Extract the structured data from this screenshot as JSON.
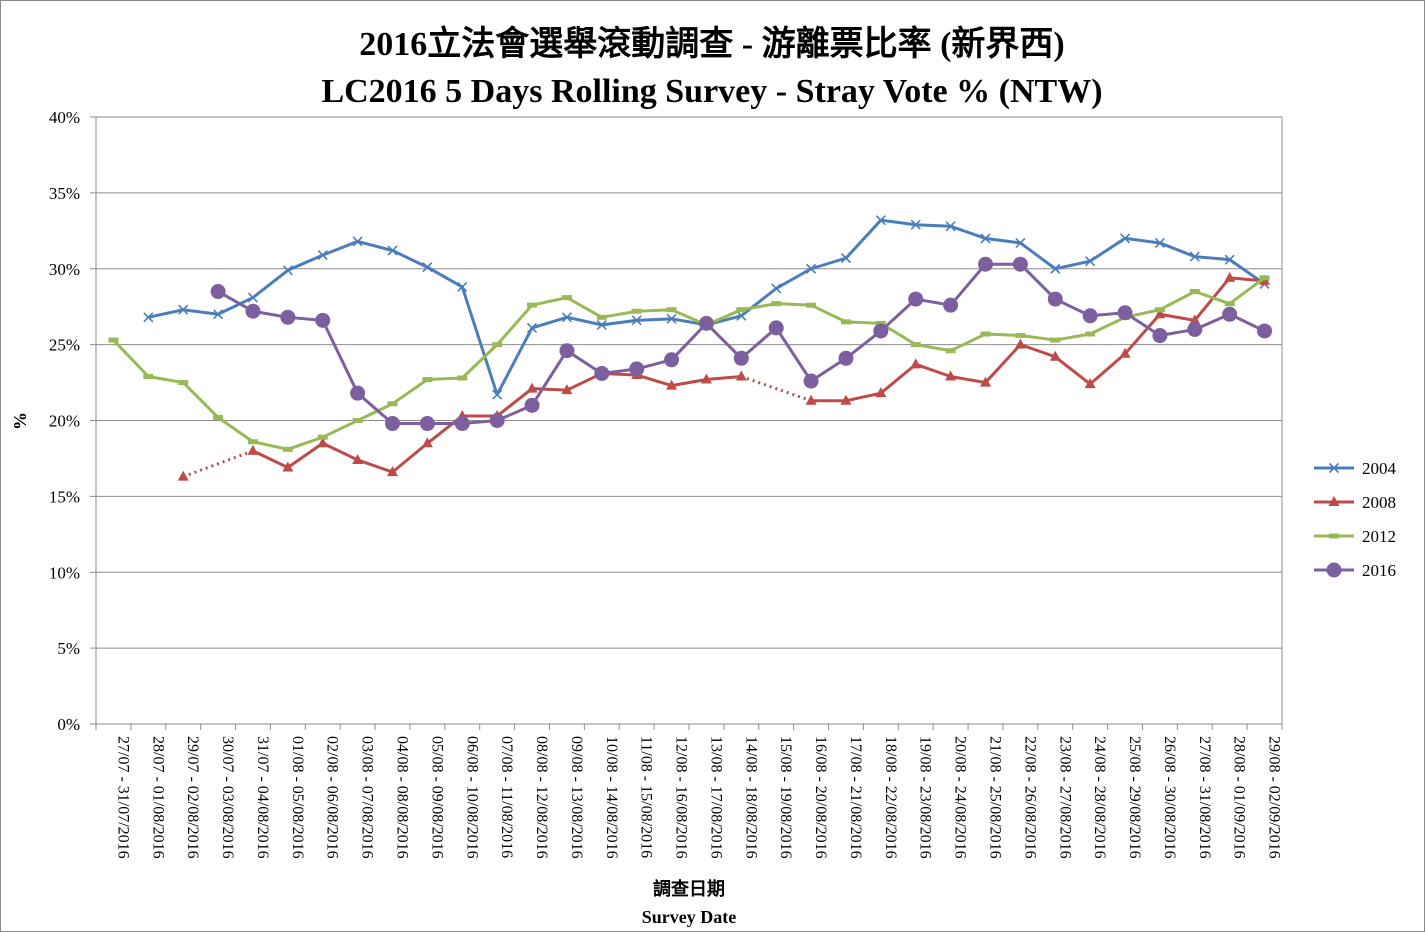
{
  "chart_data": {
    "type": "line",
    "title": "2016立法會選舉滾動調查 - 游離票比率 (新界西)",
    "subtitle": "LC2016 5 Days Rolling Survey - Stray Vote % (NTW)",
    "xlabel_zh": "調查日期",
    "xlabel": "Survey Date",
    "ylabel": "%",
    "ylim": [
      0,
      40
    ],
    "yticks": [
      "0%",
      "5%",
      "10%",
      "15%",
      "20%",
      "25%",
      "30%",
      "35%",
      "40%"
    ],
    "grid": true,
    "legend_position": "right",
    "categories": [
      "27/07 - 31/07/2016",
      "28/07 - 01/08/2016",
      "29/07 - 02/08/2016",
      "30/07 - 03/08/2016",
      "31/07 - 04/08/2016",
      "01/08 - 05/08/2016",
      "02/08 - 06/08/2016",
      "03/08 - 07/08/2016",
      "04/08 - 08/08/2016",
      "05/08 - 09/08/2016",
      "06/08 - 10/08/2016",
      "07/08 - 11/08/2016",
      "08/08 - 12/08/2016",
      "09/08 - 13/08/2016",
      "10/08 - 14/08/2016",
      "11/08 - 15/08/2016",
      "12/08 - 16/08/2016",
      "13/08 - 17/08/2016",
      "14/08 - 18/08/2016",
      "15/08 - 19/08/2016",
      "16/08 - 20/08/2016",
      "17/08 - 21/08/2016",
      "18/08 - 22/08/2016",
      "19/08 - 23/08/2016",
      "20/08 - 24/08/2016",
      "21/08 - 25/08/2016",
      "22/08 - 26/08/2016",
      "23/08 - 27/08/2016",
      "24/08 - 28/08/2016",
      "25/08 - 29/08/2016",
      "26/08 - 30/08/2016",
      "27/08 - 31/08/2016",
      "28/08 - 01/09/2016",
      "29/08 - 02/09/2016"
    ],
    "series": [
      {
        "name": "2004",
        "color": "#4a7ebb",
        "marker": "x",
        "values": [
          null,
          26.8,
          27.3,
          27.0,
          28.1,
          29.9,
          30.9,
          31.8,
          31.2,
          30.1,
          28.8,
          21.7,
          26.1,
          26.8,
          26.3,
          26.6,
          26.7,
          26.3,
          26.9,
          28.7,
          30.0,
          30.7,
          33.2,
          32.9,
          32.8,
          32.0,
          31.7,
          30.0,
          30.5,
          32.0,
          31.7,
          30.8,
          30.6,
          29.0
        ],
        "dashed_gaps": []
      },
      {
        "name": "2008",
        "color": "#be4b48",
        "marker": "triangle",
        "values": [
          null,
          null,
          16.3,
          null,
          18.0,
          16.9,
          18.5,
          17.4,
          16.6,
          18.5,
          20.3,
          20.3,
          22.1,
          22.0,
          23.1,
          23.0,
          22.3,
          22.7,
          22.9,
          null,
          21.3,
          21.3,
          21.8,
          23.7,
          22.9,
          22.5,
          25.0,
          24.2,
          22.4,
          24.4,
          27.0,
          26.6,
          29.4,
          29.2
        ],
        "dashed_gaps": [
          [
            2,
            4
          ],
          [
            18,
            20
          ]
        ]
      },
      {
        "name": "2012",
        "color": "#98b954",
        "marker": "dash",
        "values": [
          25.3,
          22.9,
          22.5,
          20.2,
          18.6,
          18.1,
          18.9,
          20.0,
          21.1,
          22.7,
          22.8,
          25.0,
          27.6,
          28.1,
          26.8,
          27.2,
          27.3,
          26.3,
          27.3,
          27.7,
          27.6,
          26.5,
          26.4,
          25.0,
          24.6,
          25.7,
          25.6,
          25.3,
          25.7,
          26.8,
          27.3,
          28.5,
          27.7,
          29.4
        ],
        "dashed_gaps": []
      },
      {
        "name": "2016",
        "color": "#7d5fa0",
        "marker": "circle",
        "values": [
          null,
          null,
          null,
          28.5,
          27.2,
          26.8,
          26.6,
          21.8,
          19.8,
          19.8,
          19.8,
          20.0,
          21.0,
          24.6,
          23.1,
          23.4,
          24.0,
          26.4,
          24.1,
          26.1,
          22.6,
          24.1,
          25.9,
          28.0,
          27.6,
          30.3,
          30.3,
          28.0,
          26.9,
          27.1,
          25.6,
          26.0,
          27.0,
          25.9
        ],
        "dashed_gaps": []
      }
    ]
  }
}
